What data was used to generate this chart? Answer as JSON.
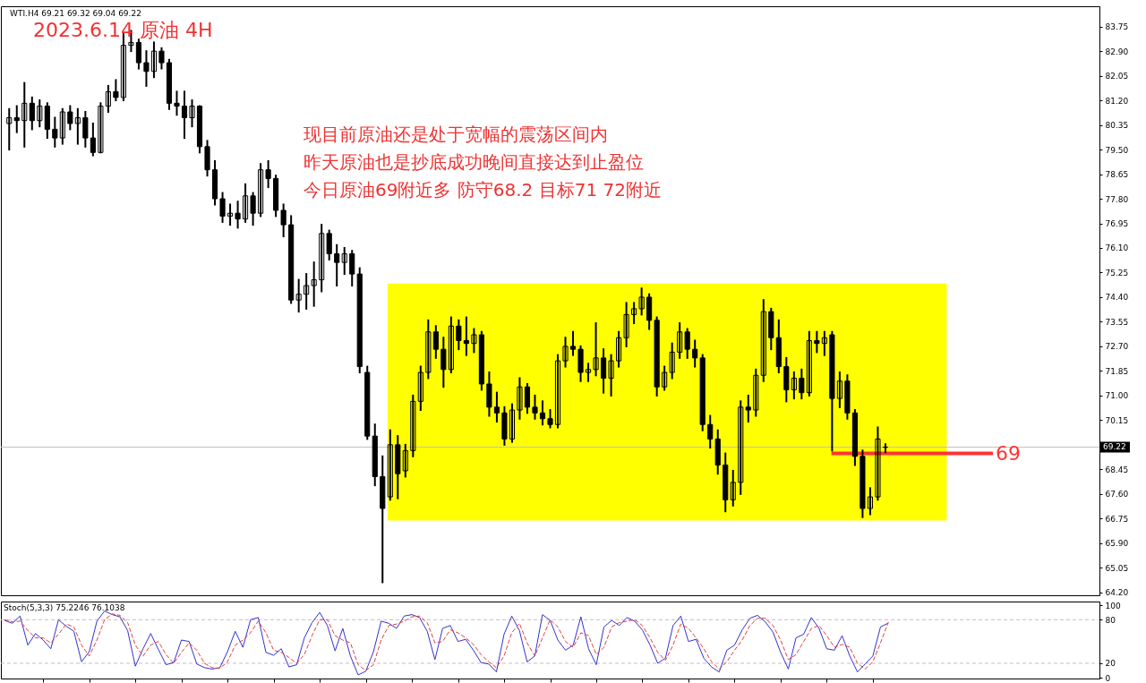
{
  "chart_data": [
    {
      "type": "candlestick",
      "title": "2023.6.14 原油 4H",
      "annotations": [
        "WTI.H4 69.21 69.32 69.04 69.22",
        "现目前原油还是处于宽幅的震荡区间内",
        "昨天原油也是抄底成功晚间直接达到止盈位",
        "今日原油69附近多 防守68.2 目标71 72附近"
      ],
      "categories": [
        null,
        null,
        null,
        null,
        null,
        null,
        null,
        null,
        null,
        null,
        null,
        null,
        null,
        null,
        null,
        null,
        null,
        null,
        null,
        null,
        null,
        null,
        null,
        null,
        null,
        null,
        null,
        null,
        null,
        null,
        null,
        null,
        null,
        null,
        null,
        null,
        null,
        null,
        null,
        null,
        null,
        null,
        null,
        null,
        null,
        null,
        null,
        null,
        null,
        null,
        null,
        null,
        null,
        null,
        null,
        null,
        null,
        null,
        null,
        null,
        null,
        null,
        null,
        null,
        null,
        null,
        null,
        null,
        null,
        null,
        null,
        null,
        null,
        null,
        null,
        null,
        null,
        null,
        null,
        null,
        null,
        null,
        null,
        null,
        null,
        null,
        null,
        null,
        null,
        null,
        null,
        null,
        null,
        null,
        null,
        null,
        null,
        null,
        null,
        null,
        null,
        null,
        null,
        null,
        null,
        null,
        null,
        null,
        null,
        null,
        null,
        null,
        null,
        null,
        null,
        null,
        null,
        null,
        null,
        null,
        null,
        null,
        null,
        null,
        null,
        null,
        null,
        null,
        null,
        null,
        null,
        null,
        null,
        null,
        null,
        null,
        null,
        null,
        null,
        null,
        null,
        null,
        null
      ],
      "color": "#000000",
      "ohlc": [
        [
          80.4,
          80.9,
          79.5,
          80.6
        ],
        [
          80.6,
          81.0,
          80.1,
          80.5
        ],
        [
          80.5,
          81.8,
          79.6,
          81.1
        ],
        [
          81.1,
          81.3,
          80.2,
          80.5
        ],
        [
          80.5,
          81.2,
          80.3,
          81.0
        ],
        [
          81.0,
          81.1,
          79.9,
          80.2
        ],
        [
          80.2,
          80.6,
          79.6,
          79.9
        ],
        [
          79.9,
          80.9,
          79.7,
          80.8
        ],
        [
          80.8,
          81.0,
          80.2,
          80.4
        ],
        [
          80.4,
          80.9,
          79.7,
          80.6
        ],
        [
          80.6,
          80.8,
          79.6,
          79.9
        ],
        [
          79.9,
          80.4,
          79.3,
          79.4
        ],
        [
          79.4,
          81.1,
          79.4,
          81.0
        ],
        [
          81.0,
          81.7,
          80.8,
          81.5
        ],
        [
          81.5,
          81.9,
          81.2,
          81.3
        ],
        [
          81.3,
          83.5,
          81.2,
          83.1
        ],
        [
          83.1,
          83.6,
          82.9,
          83.2
        ],
        [
          83.2,
          83.3,
          82.3,
          82.5
        ],
        [
          82.5,
          82.9,
          81.7,
          82.2
        ],
        [
          82.2,
          83.2,
          82.0,
          82.9
        ],
        [
          82.9,
          83.0,
          82.3,
          82.5
        ],
        [
          82.5,
          82.6,
          80.9,
          81.1
        ],
        [
          81.1,
          81.5,
          80.7,
          81.0
        ],
        [
          81.0,
          81.5,
          79.9,
          80.6
        ],
        [
          80.6,
          81.2,
          80.3,
          81.0
        ],
        [
          81.0,
          81.0,
          79.4,
          79.6
        ],
        [
          79.6,
          79.8,
          78.6,
          78.8
        ],
        [
          78.8,
          79.1,
          77.6,
          77.8
        ],
        [
          77.8,
          78.0,
          77.0,
          77.2
        ],
        [
          77.2,
          77.6,
          76.9,
          77.3
        ],
        [
          77.3,
          77.7,
          76.8,
          77.1
        ],
        [
          77.1,
          78.3,
          77.0,
          77.9
        ],
        [
          77.9,
          78.0,
          76.9,
          77.3
        ],
        [
          77.3,
          79.0,
          77.2,
          78.8
        ],
        [
          78.8,
          79.1,
          78.2,
          78.5
        ],
        [
          78.5,
          78.6,
          77.2,
          77.4
        ],
        [
          77.4,
          77.6,
          76.5,
          76.9
        ],
        [
          76.9,
          77.2,
          74.2,
          74.3
        ],
        [
          74.3,
          75.0,
          73.9,
          74.5
        ],
        [
          74.5,
          75.2,
          74.0,
          74.8
        ],
        [
          74.8,
          75.6,
          74.1,
          75.0
        ],
        [
          75.0,
          76.9,
          74.6,
          76.6
        ],
        [
          76.6,
          76.7,
          75.7,
          75.9
        ],
        [
          75.9,
          76.2,
          74.8,
          75.6
        ],
        [
          75.6,
          76.1,
          75.2,
          75.9
        ],
        [
          75.9,
          76.0,
          74.8,
          75.2
        ],
        [
          75.2,
          75.4,
          71.8,
          72.0
        ],
        [
          71.8,
          72.0,
          69.5,
          69.6
        ],
        [
          69.6,
          70.0,
          67.9,
          68.2
        ],
        [
          68.2,
          68.9,
          64.55,
          67.1
        ],
        [
          67.5,
          69.8,
          67.4,
          69.3
        ],
        [
          69.3,
          69.6,
          67.45,
          68.3
        ],
        [
          68.4,
          69.3,
          68.2,
          69.1
        ],
        [
          69.1,
          71.0,
          68.9,
          70.8
        ],
        [
          70.8,
          72.0,
          70.5,
          71.8
        ],
        [
          71.8,
          73.6,
          71.6,
          73.2
        ],
        [
          73.2,
          73.4,
          72.3,
          72.6
        ],
        [
          72.6,
          73.0,
          71.3,
          71.9
        ],
        [
          71.9,
          73.7,
          71.8,
          73.4
        ],
        [
          73.4,
          73.6,
          72.6,
          72.9
        ],
        [
          72.9,
          73.7,
          72.4,
          72.8
        ],
        [
          72.8,
          73.3,
          72.5,
          73.1
        ],
        [
          73.1,
          73.2,
          71.2,
          71.4
        ],
        [
          71.4,
          71.8,
          70.3,
          70.6
        ],
        [
          70.6,
          71.1,
          70.1,
          70.4
        ],
        [
          70.4,
          70.6,
          69.3,
          69.5
        ],
        [
          69.5,
          70.7,
          69.4,
          70.5
        ],
        [
          70.5,
          71.6,
          70.2,
          71.3
        ],
        [
          71.3,
          71.4,
          70.4,
          70.6
        ],
        [
          70.6,
          71.0,
          70.2,
          70.4
        ],
        [
          70.4,
          70.8,
          70.0,
          70.2
        ],
        [
          70.2,
          70.5,
          69.9,
          70.0
        ],
        [
          70.0,
          72.4,
          69.9,
          72.2
        ],
        [
          72.2,
          73.0,
          72.0,
          72.7
        ],
        [
          72.7,
          73.2,
          72.4,
          72.6
        ],
        [
          72.6,
          72.7,
          71.5,
          71.8
        ],
        [
          71.8,
          72.1,
          71.5,
          71.9
        ],
        [
          71.9,
          73.5,
          71.7,
          72.3
        ],
        [
          72.3,
          72.6,
          71.1,
          71.6
        ],
        [
          71.6,
          72.4,
          71.0,
          72.2
        ],
        [
          72.2,
          73.2,
          72.0,
          73.0
        ],
        [
          73.0,
          74.2,
          72.7,
          73.8
        ],
        [
          73.8,
          74.2,
          73.5,
          74.0
        ],
        [
          74.0,
          74.7,
          73.8,
          74.4
        ],
        [
          74.4,
          74.5,
          73.3,
          73.6
        ],
        [
          73.6,
          73.7,
          71.0,
          71.3
        ],
        [
          71.3,
          72.0,
          71.2,
          71.8
        ],
        [
          71.8,
          72.8,
          71.6,
          72.5
        ],
        [
          72.5,
          73.5,
          72.3,
          73.2
        ],
        [
          73.2,
          73.3,
          72.3,
          72.6
        ],
        [
          72.6,
          72.9,
          72.0,
          72.3
        ],
        [
          72.3,
          72.4,
          69.8,
          70.0
        ],
        [
          70.0,
          70.3,
          69.2,
          69.5
        ],
        [
          69.5,
          69.8,
          68.3,
          68.6
        ],
        [
          68.6,
          69.0,
          67.0,
          67.4
        ],
        [
          67.4,
          68.4,
          67.2,
          68.0
        ],
        [
          68.0,
          70.8,
          67.6,
          70.6
        ],
        [
          70.6,
          71.0,
          70.1,
          70.5
        ],
        [
          70.5,
          71.9,
          70.3,
          71.7
        ],
        [
          71.7,
          74.3,
          71.5,
          73.9
        ],
        [
          73.9,
          74.0,
          72.6,
          73.0
        ],
        [
          73.0,
          73.6,
          71.8,
          72.0
        ],
        [
          72.0,
          72.3,
          70.8,
          71.2
        ],
        [
          71.2,
          71.8,
          70.9,
          71.6
        ],
        [
          71.6,
          71.9,
          70.9,
          71.1
        ],
        [
          71.1,
          73.2,
          71.0,
          72.9
        ],
        [
          72.9,
          73.2,
          72.5,
          72.8
        ],
        [
          72.8,
          73.2,
          72.4,
          73.0
        ],
        [
          73.1,
          73.2,
          69.1,
          70.9
        ],
        [
          70.9,
          71.8,
          70.6,
          71.5
        ],
        [
          71.5,
          71.7,
          70.2,
          70.4
        ],
        [
          70.4,
          70.5,
          68.6,
          68.9
        ],
        [
          68.9,
          69.1,
          66.8,
          67.1
        ],
        [
          67.1,
          67.8,
          66.9,
          67.5
        ],
        [
          67.5,
          69.9,
          67.4,
          69.5
        ],
        [
          69.21,
          69.32,
          69.04,
          69.22
        ],
        null,
        null,
        null,
        null,
        null,
        null,
        null,
        null,
        null,
        null,
        null,
        null,
        null,
        null,
        null,
        null,
        null,
        null,
        null,
        null,
        null,
        null,
        null,
        null,
        null,
        null,
        null
      ],
      "ylim": [
        64.1,
        84.45
      ],
      "yticks": [
        83.75,
        {
          "value": 82.9,
          "label": "82.90"
        },
        82.05,
        {
          "value": 81.2,
          "label": "81.20"
        },
        80.35,
        {
          "value": 79.5,
          "label": "79.50"
        },
        78.65,
        {
          "value": 77.8,
          "label": "77.80"
        },
        76.95,
        {
          "value": 76.1,
          "label": "76.10"
        },
        75.25,
        {
          "value": 74.4,
          "label": "74.40"
        },
        73.55,
        {
          "value": 72.7,
          "label": "72.70"
        },
        71.85,
        {
          "value": 71,
          "label": "71.00"
        },
        70.15,
        68.45,
        {
          "value": 67.6,
          "label": "67.60"
        },
        66.75,
        {
          "value": 65.9,
          "label": "65.90"
        },
        65.05,
        {
          "value": 64.2,
          "label": "64.20"
        }
      ],
      "tick_labels": "y",
      "bands": [
        {
          "axis": "y",
          "from": 66.68,
          "to": 74.87,
          "color": "#ffff00"
        }
      ],
      "ref_lines": [
        {
          "axis": "y",
          "value": 69.22,
          "label": "69.22",
          "color": "#c0c0c0"
        },
        {
          "axis": "y",
          "value": 69,
          "label": "69",
          "color": "#ff3333"
        }
      ]
    },
    {
      "type": "line",
      "title": "Stoch(5,3,3) 75.2246 76.1038",
      "categories": [
        null,
        null,
        null,
        null,
        null,
        null,
        null,
        null,
        null,
        null,
        null,
        null,
        null,
        null,
        null,
        null,
        null,
        null,
        null,
        null,
        null,
        null,
        null,
        null,
        null,
        null,
        null,
        null,
        null,
        null,
        null,
        null,
        null,
        null,
        null,
        null,
        null,
        null,
        null,
        null,
        null,
        null,
        null,
        null,
        null,
        null,
        null,
        null,
        null,
        null,
        null,
        null,
        null,
        null,
        null,
        null,
        null,
        null,
        null,
        null,
        null,
        null,
        null,
        null,
        null,
        null,
        null,
        null,
        null,
        null,
        null,
        null,
        null,
        null,
        null,
        null,
        null,
        null,
        null,
        null,
        null,
        null,
        null,
        null,
        null,
        null,
        null,
        null,
        null,
        null,
        null,
        null,
        null,
        null,
        null,
        null,
        null,
        null,
        null,
        null,
        null,
        null,
        null,
        null,
        null,
        null,
        null,
        null,
        null,
        null,
        null,
        null,
        null,
        null,
        null,
        null,
        null,
        null,
        null,
        null,
        null,
        null,
        null,
        null,
        null,
        null,
        null,
        null,
        null,
        null,
        null,
        null,
        null,
        null,
        null,
        null,
        null,
        null,
        null,
        null,
        null,
        null,
        null
      ],
      "series": [
        {
          "color": "#3333cc",
          "values": [
            79,
            75,
            85,
            45,
            61,
            52,
            40,
            80,
            71,
            64,
            22,
            36,
            78,
            92,
            87,
            84,
            65,
            16,
            40,
            61,
            39,
            18,
            21,
            52,
            50,
            19,
            14,
            12,
            14,
            36,
            64,
            42,
            80,
            83,
            35,
            31,
            40,
            15,
            18,
            55,
            76,
            90,
            72,
            37,
            68,
            30,
            4,
            9,
            36,
            78,
            75,
            68,
            85,
            87,
            83,
            64,
            25,
            68,
            72,
            50,
            53,
            38,
            21,
            19,
            8,
            60,
            85,
            65,
            22,
            30,
            87,
            79,
            52,
            38,
            45,
            84,
            40,
            18,
            70,
            79,
            72,
            83,
            78,
            66,
            45,
            20,
            27,
            72,
            85,
            50,
            53,
            27,
            15,
            8,
            38,
            45,
            66,
            82,
            86,
            77,
            63,
            35,
            12,
            55,
            60,
            83,
            68,
            40,
            38,
            58,
            30,
            8,
            19,
            30,
            70,
            75.2246,
            null,
            null,
            null,
            null,
            null,
            null,
            null,
            null,
            null,
            null,
            null,
            null,
            null,
            null,
            null,
            null,
            null,
            null,
            null,
            null,
            null,
            null,
            null,
            null,
            null,
            null,
            null
          ]
        },
        {
          "color": "#e04040",
          "line_style": "dashed",
          "values": [
            80,
            77,
            78,
            65,
            55,
            55,
            48,
            60,
            74,
            70,
            45,
            30,
            52,
            80,
            88,
            86,
            76,
            45,
            30,
            45,
            50,
            32,
            20,
            35,
            48,
            38,
            20,
            14,
            13,
            22,
            45,
            52,
            62,
            78,
            62,
            38,
            35,
            28,
            20,
            32,
            58,
            80,
            80,
            58,
            52,
            48,
            18,
            10,
            18,
            52,
            72,
            74,
            78,
            84,
            85,
            76,
            48,
            50,
            66,
            62,
            55,
            46,
            32,
            22,
            14,
            30,
            62,
            75,
            48,
            30,
            55,
            80,
            70,
            50,
            42,
            62,
            58,
            32,
            42,
            70,
            76,
            78,
            80,
            72,
            55,
            35,
            24,
            45,
            74,
            68,
            55,
            40,
            22,
            12,
            22,
            38,
            52,
            72,
            82,
            82,
            72,
            52,
            25,
            32,
            50,
            68,
            72,
            58,
            42,
            46,
            42,
            20,
            12,
            22,
            48,
            76.1038,
            null,
            null,
            null,
            null,
            null,
            null,
            null,
            null,
            null,
            null,
            null,
            null,
            null,
            null,
            null,
            null,
            null,
            null,
            null,
            null,
            null,
            null,
            null,
            null,
            null,
            null,
            null
          ]
        }
      ],
      "ylim": [
        -1,
        105
      ],
      "yticks": [
        0,
        20,
        80,
        100
      ],
      "tick_labels": "y",
      "ref_lines": [
        {
          "axis": "y",
          "value": 80,
          "color": "#c0c0c0",
          "line_style": "dashed"
        },
        {
          "axis": "y",
          "value": 20,
          "color": "#c0c0c0",
          "line_style": "dashed"
        }
      ]
    }
  ]
}
